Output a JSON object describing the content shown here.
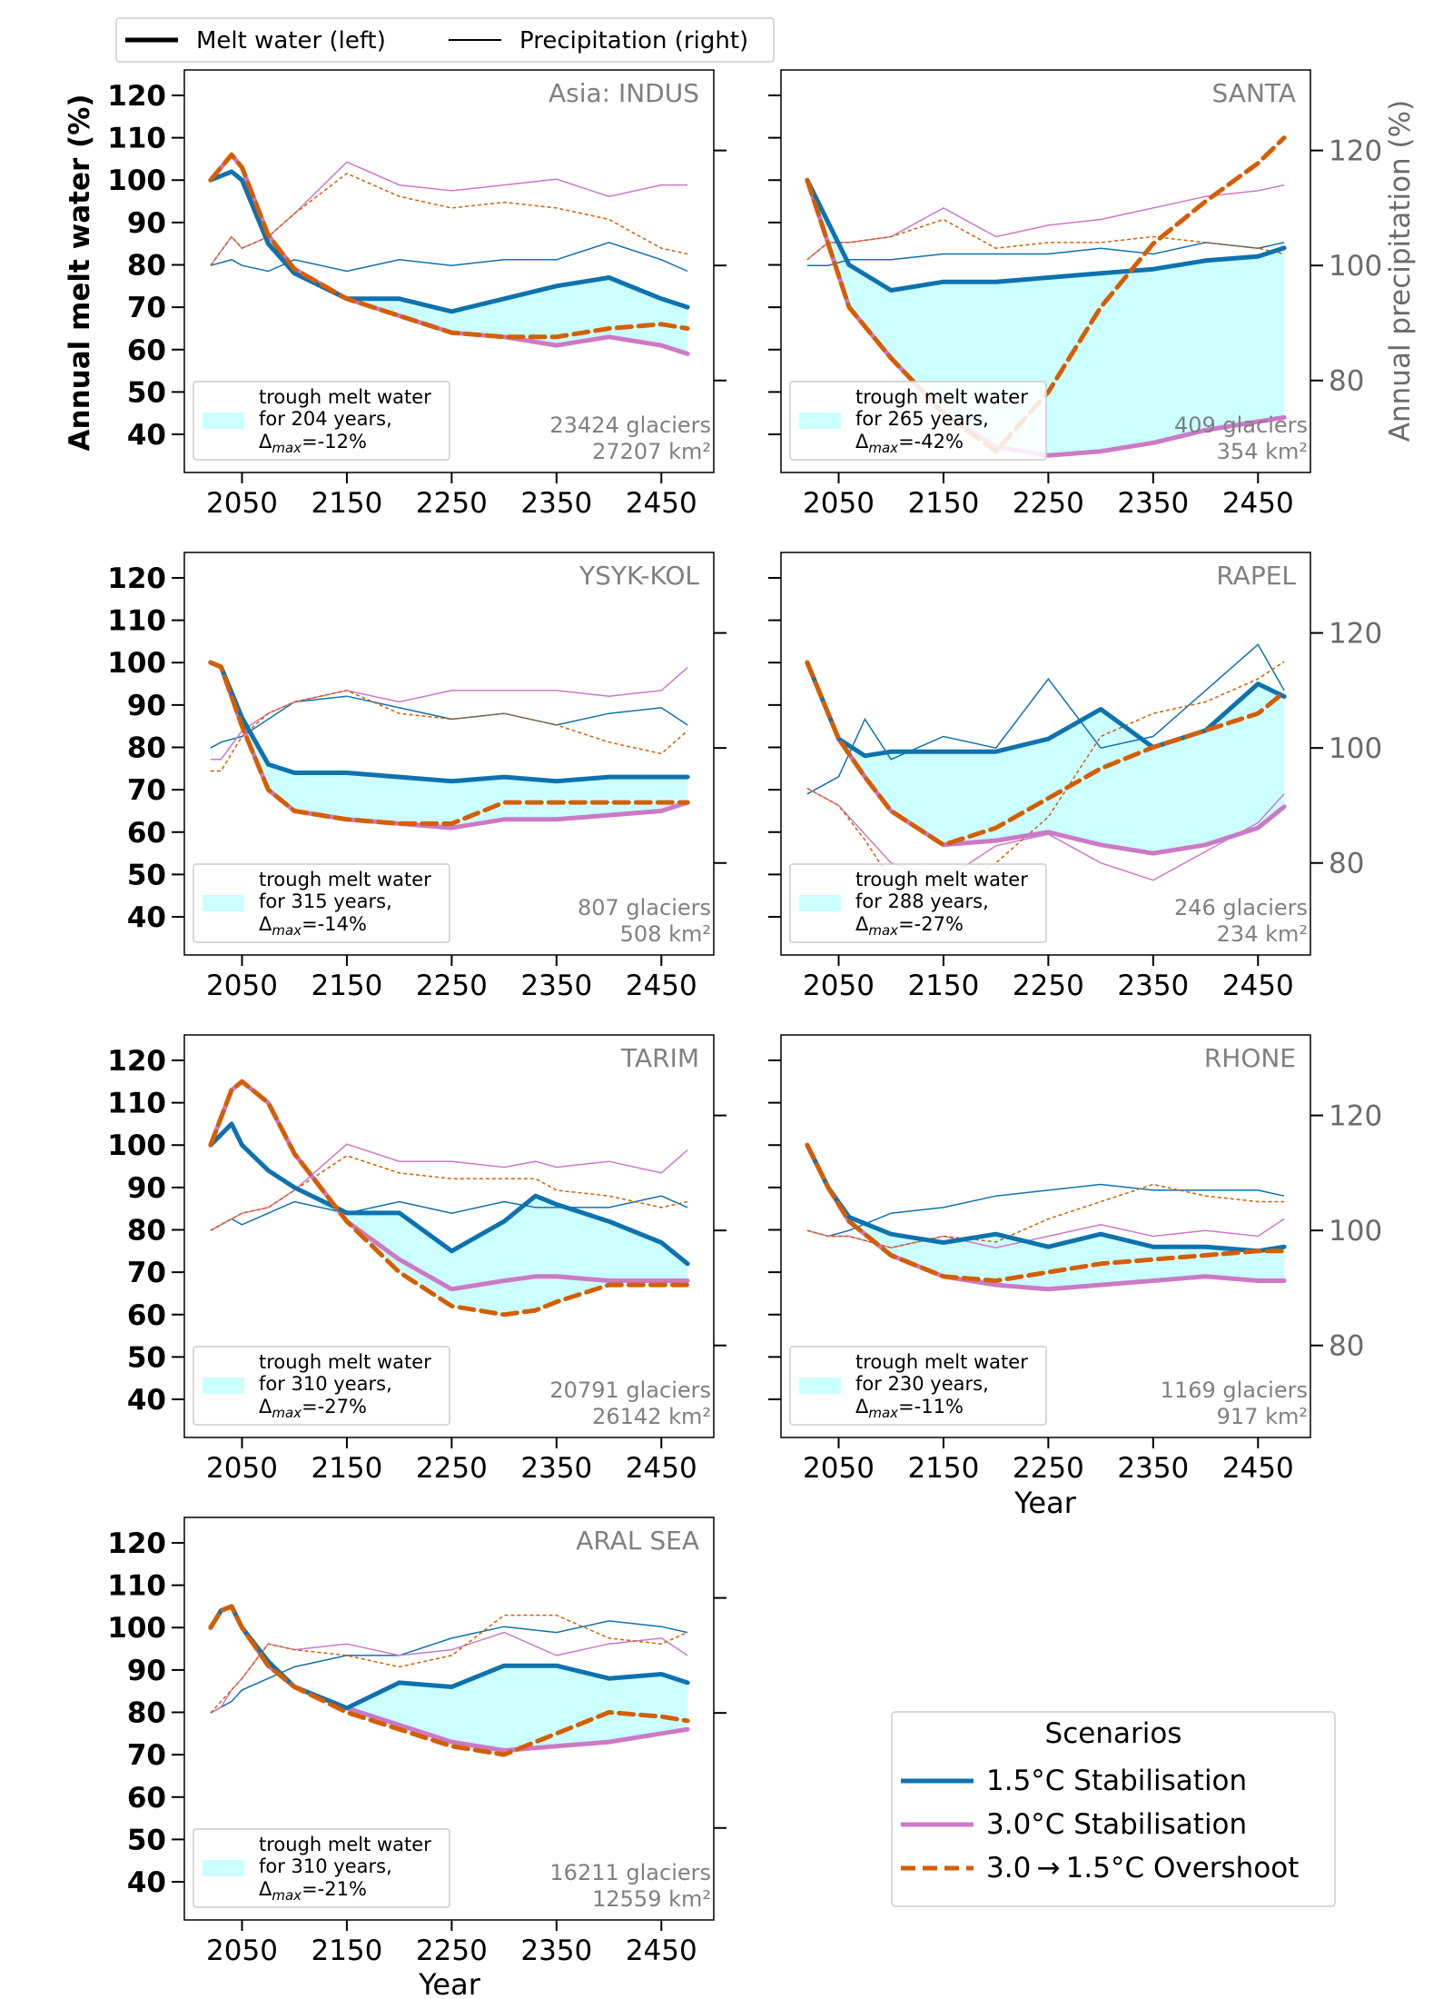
{
  "legend_top": {
    "melt_label": "Melt water (left)",
    "precip_label": "Precipitation (right)"
  },
  "axes": {
    "left_ylabel": "Annual melt water (%)",
    "right_ylabel": "Annual precipitation (%)",
    "xlabel": "Year",
    "x_ticks": [
      "2050",
      "2150",
      "2250",
      "2350",
      "2450"
    ],
    "y_left_ticks": [
      "40",
      "50",
      "60",
      "70",
      "80",
      "90",
      "100",
      "110",
      "120"
    ],
    "y_right_ticks": [
      "80",
      "100",
      "120"
    ]
  },
  "scenarios_legend": {
    "title": "Scenarios",
    "entries": [
      "1.5°C Stabilisation",
      "3.0°C Stabilisation",
      "3.0 → 1.5°C Overshoot"
    ]
  },
  "colors": {
    "s15": "#0e72ad",
    "s30": "#cc79c6",
    "os": "#d55e00",
    "fill": "#ccffff",
    "grey": "#808080"
  },
  "trough_label": {
    "line1": "trough melt water",
    "line2_prefix": "for",
    "line2_suffix": "years,",
    "delta_text": "Δ",
    "delta_sub": "max"
  },
  "chart_data": [
    {
      "type": "line",
      "title": "Asia: INDUS",
      "glaciers": "23424 glaciers",
      "area": "27207 km²",
      "trough_years": "204",
      "delta": "=-12%",
      "x": [
        2020,
        2040,
        2050,
        2075,
        2100,
        2150,
        2200,
        2250,
        2300,
        2350,
        2400,
        2450,
        2475
      ],
      "series": [
        {
          "name": "1.5°C Stabilisation",
          "melt": [
            100,
            102,
            100,
            85,
            78,
            72,
            72,
            69,
            72,
            75,
            77,
            72,
            70
          ],
          "precip": [
            100,
            101,
            100,
            99,
            101,
            99,
            101,
            100,
            101,
            101,
            104,
            101,
            99
          ]
        },
        {
          "name": "3.0°C Stabilisation",
          "melt": [
            100,
            106,
            103,
            87,
            79,
            72,
            68,
            64,
            63,
            61,
            63,
            61,
            59
          ],
          "precip": [
            100,
            105,
            103,
            105,
            109,
            118,
            114,
            113,
            114,
            115,
            112,
            114,
            114
          ]
        },
        {
          "name": "3.0→1.5°C Overshoot",
          "melt": [
            100,
            106,
            103,
            87,
            79,
            72,
            68,
            64,
            63,
            63,
            65,
            66,
            65
          ],
          "precip": [
            100,
            105,
            103,
            105,
            109,
            116,
            112,
            110,
            111,
            110,
            108,
            103,
            102
          ]
        }
      ]
    },
    {
      "type": "line",
      "title": "SANTA",
      "glaciers": "409 glaciers",
      "area": "354 km²",
      "trough_years": "265",
      "delta": "=-42%",
      "x": [
        2020,
        2040,
        2060,
        2100,
        2150,
        2200,
        2250,
        2300,
        2350,
        2400,
        2450,
        2475
      ],
      "series": [
        {
          "name": "1.5°C Stabilisation",
          "melt": [
            100,
            90,
            80,
            74,
            76,
            76,
            77,
            78,
            79,
            81,
            82,
            84
          ],
          "precip": [
            100,
            100,
            101,
            101,
            102,
            102,
            102,
            103,
            102,
            104,
            103,
            104
          ]
        },
        {
          "name": "3.0°C Stabilisation",
          "melt": [
            100,
            85,
            70,
            58,
            45,
            37,
            35,
            36,
            38,
            41,
            43,
            44
          ],
          "precip": [
            101,
            104,
            104,
            105,
            110,
            105,
            107,
            108,
            110,
            112,
            113,
            114
          ]
        },
        {
          "name": "3.0→1.5°C Overshoot",
          "melt": [
            100,
            85,
            70,
            58,
            45,
            36,
            50,
            70,
            85,
            95,
            104,
            110
          ],
          "precip": [
            101,
            104,
            104,
            105,
            108,
            103,
            104,
            104,
            105,
            104,
            103,
            102
          ]
        }
      ]
    },
    {
      "type": "line",
      "title": "YSYK-KOL",
      "glaciers": "807 glaciers",
      "area": "508 km²",
      "trough_years": "315",
      "delta": "=-14%",
      "x": [
        2020,
        2030,
        2050,
        2075,
        2100,
        2150,
        2200,
        2250,
        2300,
        2350,
        2400,
        2450,
        2475
      ],
      "series": [
        {
          "name": "1.5°C Stabilisation",
          "melt": [
            100,
            99,
            87,
            76,
            74,
            74,
            73,
            72,
            73,
            72,
            73,
            73,
            73
          ],
          "precip": [
            100,
            101,
            102,
            105,
            108,
            109,
            107,
            105,
            106,
            104,
            106,
            107,
            104
          ]
        },
        {
          "name": "3.0°C Stabilisation",
          "melt": [
            100,
            99,
            85,
            70,
            65,
            63,
            62,
            61,
            63,
            63,
            64,
            65,
            67
          ],
          "precip": [
            98,
            98,
            103,
            106,
            108,
            110,
            108,
            110,
            110,
            110,
            109,
            110,
            114
          ]
        },
        {
          "name": "3.0→1.5°C Overshoot",
          "melt": [
            100,
            99,
            85,
            70,
            65,
            63,
            62,
            62,
            67,
            67,
            67,
            67,
            67
          ],
          "precip": [
            96,
            96,
            102,
            106,
            108,
            110,
            106,
            105,
            106,
            104,
            101,
            99,
            103
          ]
        }
      ]
    },
    {
      "type": "line",
      "title": "RAPEL",
      "glaciers": "246 glaciers",
      "area": "234 km²",
      "trough_years": "288",
      "delta": "=-27%",
      "x": [
        2020,
        2050,
        2075,
        2100,
        2150,
        2200,
        2250,
        2300,
        2350,
        2400,
        2450,
        2475
      ],
      "series": [
        {
          "name": "1.5°C Stabilisation",
          "melt": [
            100,
            82,
            78,
            79,
            79,
            79,
            82,
            89,
            80,
            84,
            95,
            92
          ],
          "precip": [
            92,
            95,
            105,
            98,
            102,
            100,
            112,
            100,
            102,
            110,
            118,
            110
          ]
        },
        {
          "name": "3.0°C Stabilisation",
          "melt": [
            100,
            82,
            73,
            65,
            57,
            58,
            60,
            57,
            55,
            57,
            61,
            66
          ],
          "precip": [
            93,
            90,
            85,
            80,
            77,
            83,
            85,
            80,
            77,
            82,
            87,
            92
          ]
        },
        {
          "name": "3.0→1.5°C Overshoot",
          "melt": [
            100,
            82,
            73,
            65,
            57,
            61,
            68,
            75,
            80,
            84,
            88,
            93
          ],
          "precip": [
            93,
            90,
            84,
            77,
            75,
            80,
            88,
            102,
            106,
            108,
            112,
            115
          ]
        }
      ]
    },
    {
      "type": "line",
      "title": "TARIM",
      "glaciers": "20791 glaciers",
      "area": "26142 km²",
      "trough_years": "310",
      "delta": "=-27%",
      "x": [
        2020,
        2040,
        2050,
        2075,
        2100,
        2150,
        2200,
        2250,
        2300,
        2330,
        2350,
        2400,
        2450,
        2475
      ],
      "series": [
        {
          "name": "1.5°C Stabilisation",
          "melt": [
            100,
            105,
            100,
            94,
            90,
            84,
            84,
            75,
            82,
            88,
            86,
            82,
            77,
            72
          ],
          "precip": [
            100,
            102,
            101,
            103,
            105,
            103,
            105,
            103,
            105,
            104,
            104,
            104,
            106,
            104
          ]
        },
        {
          "name": "3.0°C Stabilisation",
          "melt": [
            100,
            113,
            115,
            110,
            98,
            82,
            73,
            66,
            68,
            69,
            69,
            68,
            68,
            68
          ],
          "precip": [
            100,
            102,
            103,
            104,
            107,
            115,
            112,
            112,
            111,
            112,
            111,
            112,
            110,
            114
          ]
        },
        {
          "name": "3.0→1.5°C Overshoot",
          "melt": [
            100,
            113,
            115,
            110,
            98,
            82,
            70,
            62,
            60,
            61,
            63,
            67,
            67,
            67
          ],
          "precip": [
            100,
            102,
            103,
            104,
            107,
            113,
            110,
            109,
            109,
            109,
            107,
            106,
            104,
            105
          ]
        }
      ]
    },
    {
      "type": "line",
      "title": "RHONE",
      "glaciers": "1169 glaciers",
      "area": "917 km²",
      "trough_years": "230",
      "delta": "=-11%",
      "x": [
        2020,
        2040,
        2060,
        2100,
        2150,
        2200,
        2250,
        2300,
        2350,
        2400,
        2450,
        2475
      ],
      "series": [
        {
          "name": "1.5°C Stabilisation",
          "melt": [
            100,
            90,
            83,
            79,
            77,
            79,
            76,
            79,
            76,
            76,
            75,
            76
          ],
          "precip": [
            100,
            99,
            100,
            103,
            104,
            106,
            107,
            108,
            107,
            107,
            107,
            106
          ]
        },
        {
          "name": "3.0°C Stabilisation",
          "melt": [
            100,
            90,
            82,
            74,
            69,
            67,
            66,
            67,
            68,
            69,
            68,
            68
          ],
          "precip": [
            100,
            99,
            99,
            97,
            99,
            97,
            99,
            101,
            99,
            100,
            99,
            102
          ]
        },
        {
          "name": "3.0→1.5°C Overshoot",
          "melt": [
            100,
            90,
            82,
            74,
            69,
            68,
            70,
            72,
            73,
            74,
            75,
            75
          ],
          "precip": [
            100,
            99,
            99,
            97,
            99,
            98,
            102,
            105,
            108,
            106,
            105,
            105
          ]
        }
      ]
    },
    {
      "type": "line",
      "title": "ARAL SEA",
      "glaciers": "16211 glaciers",
      "area": "12559 km²",
      "trough_years": "310",
      "delta": "=-21%",
      "x": [
        2020,
        2030,
        2040,
        2050,
        2075,
        2100,
        2150,
        2200,
        2250,
        2300,
        2350,
        2400,
        2450,
        2475
      ],
      "series": [
        {
          "name": "1.5°C Stabilisation",
          "melt": [
            100,
            104,
            105,
            100,
            92,
            86,
            81,
            87,
            86,
            91,
            91,
            88,
            89,
            87
          ],
          "precip": [
            100,
            101,
            102,
            104,
            106,
            108,
            110,
            110,
            113,
            115,
            114,
            116,
            115,
            114
          ]
        },
        {
          "name": "3.0°C Stabilisation",
          "melt": [
            100,
            104,
            105,
            100,
            91,
            86,
            81,
            77,
            73,
            71,
            72,
            73,
            75,
            76
          ],
          "precip": [
            100,
            101,
            104,
            106,
            112,
            111,
            112,
            110,
            111,
            114,
            110,
            112,
            113,
            110
          ]
        },
        {
          "name": "3.0→1.5°C Overshoot",
          "melt": [
            100,
            104,
            105,
            100,
            91,
            86,
            80,
            76,
            72,
            70,
            75,
            80,
            79,
            78
          ],
          "precip": [
            100,
            102,
            104,
            106,
            112,
            111,
            110,
            108,
            110,
            117,
            117,
            113,
            112,
            114
          ]
        }
      ]
    }
  ]
}
